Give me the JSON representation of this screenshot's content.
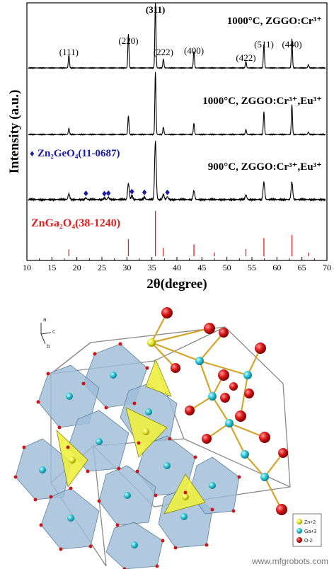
{
  "chart_data": {
    "type": "line",
    "xlabel": "2θ(degree)",
    "ylabel": "Intensity (a.u.)",
    "xlim": [
      10,
      70
    ],
    "xticks": [
      10,
      15,
      20,
      25,
      30,
      35,
      40,
      45,
      50,
      55,
      60,
      65,
      70
    ],
    "series": [
      {
        "name": "1000°C, ZGGO:Cr³⁺",
        "color": "#000000",
        "peaks": [
          [
            18.4,
            0.2
          ],
          [
            30.3,
            0.52
          ],
          [
            35.7,
            1.0
          ],
          [
            37.3,
            0.14
          ],
          [
            43.4,
            0.26
          ],
          [
            53.8,
            0.1
          ],
          [
            57.4,
            0.36
          ],
          [
            63.0,
            0.45
          ],
          [
            66.3,
            0.05
          ]
        ]
      },
      {
        "name": "1000°C, ZGGO:Cr³⁺,Eu³⁺",
        "color": "#000000",
        "peaks": [
          [
            18.4,
            0.1
          ],
          [
            30.3,
            0.3
          ],
          [
            35.7,
            1.0
          ],
          [
            37.3,
            0.12
          ],
          [
            43.4,
            0.18
          ],
          [
            53.8,
            0.08
          ],
          [
            57.4,
            0.36
          ],
          [
            63.0,
            0.48
          ],
          [
            66.3,
            0.04
          ]
        ]
      },
      {
        "name": "900°C, ZGGO:Cr³⁺,Eu³⁺",
        "color": "#000000",
        "peaks": [
          [
            18.4,
            0.1
          ],
          [
            21.8,
            0.03
          ],
          [
            25.5,
            0.03
          ],
          [
            26.3,
            0.04
          ],
          [
            30.3,
            0.28
          ],
          [
            31.0,
            0.07
          ],
          [
            33.5,
            0.04
          ],
          [
            35.7,
            1.0
          ],
          [
            37.3,
            0.09
          ],
          [
            38.1,
            0.05
          ],
          [
            43.4,
            0.15
          ],
          [
            53.8,
            0.08
          ],
          [
            57.4,
            0.3
          ],
          [
            63.0,
            0.3
          ]
        ]
      }
    ],
    "reference": {
      "name": "ZnGa₂O₄(38-1240)",
      "color": "#e02020",
      "lines": [
        [
          18.4,
          0.15
        ],
        [
          30.3,
          0.38
        ],
        [
          35.7,
          1.0
        ],
        [
          37.3,
          0.18
        ],
        [
          43.4,
          0.26
        ],
        [
          47.5,
          0.08
        ],
        [
          53.8,
          0.16
        ],
        [
          57.4,
          0.4
        ],
        [
          63.0,
          0.47
        ],
        [
          66.3,
          0.08
        ]
      ]
    },
    "impurity": {
      "name": "Zn₂GeO₄(11-0687)",
      "marker": "♦",
      "color": "#1a1aa8",
      "positions": [
        21.8,
        25.5,
        26.3,
        31.0,
        33.5,
        38.1
      ]
    },
    "peak_labels": [
      {
        "x": 18.4,
        "text": "(111)"
      },
      {
        "x": 30.3,
        "text": "(220)"
      },
      {
        "x": 35.7,
        "text": "(311)"
      },
      {
        "x": 37.3,
        "text": "(222)"
      },
      {
        "x": 43.4,
        "text": "(400)"
      },
      {
        "x": 53.8,
        "text": "(422)"
      },
      {
        "x": 57.4,
        "text": "(511)"
      },
      {
        "x": 63.0,
        "text": "(440)"
      }
    ]
  },
  "structure": {
    "axes": [
      "a",
      "c",
      "b"
    ],
    "legend": [
      {
        "label": "Zn+2",
        "color": "#f2f24a"
      },
      {
        "label": "Ga+3",
        "color": "#40d0e0"
      },
      {
        "label": "O-2",
        "color": "#e01818"
      }
    ]
  },
  "watermark": "www.mfgrobots.com"
}
